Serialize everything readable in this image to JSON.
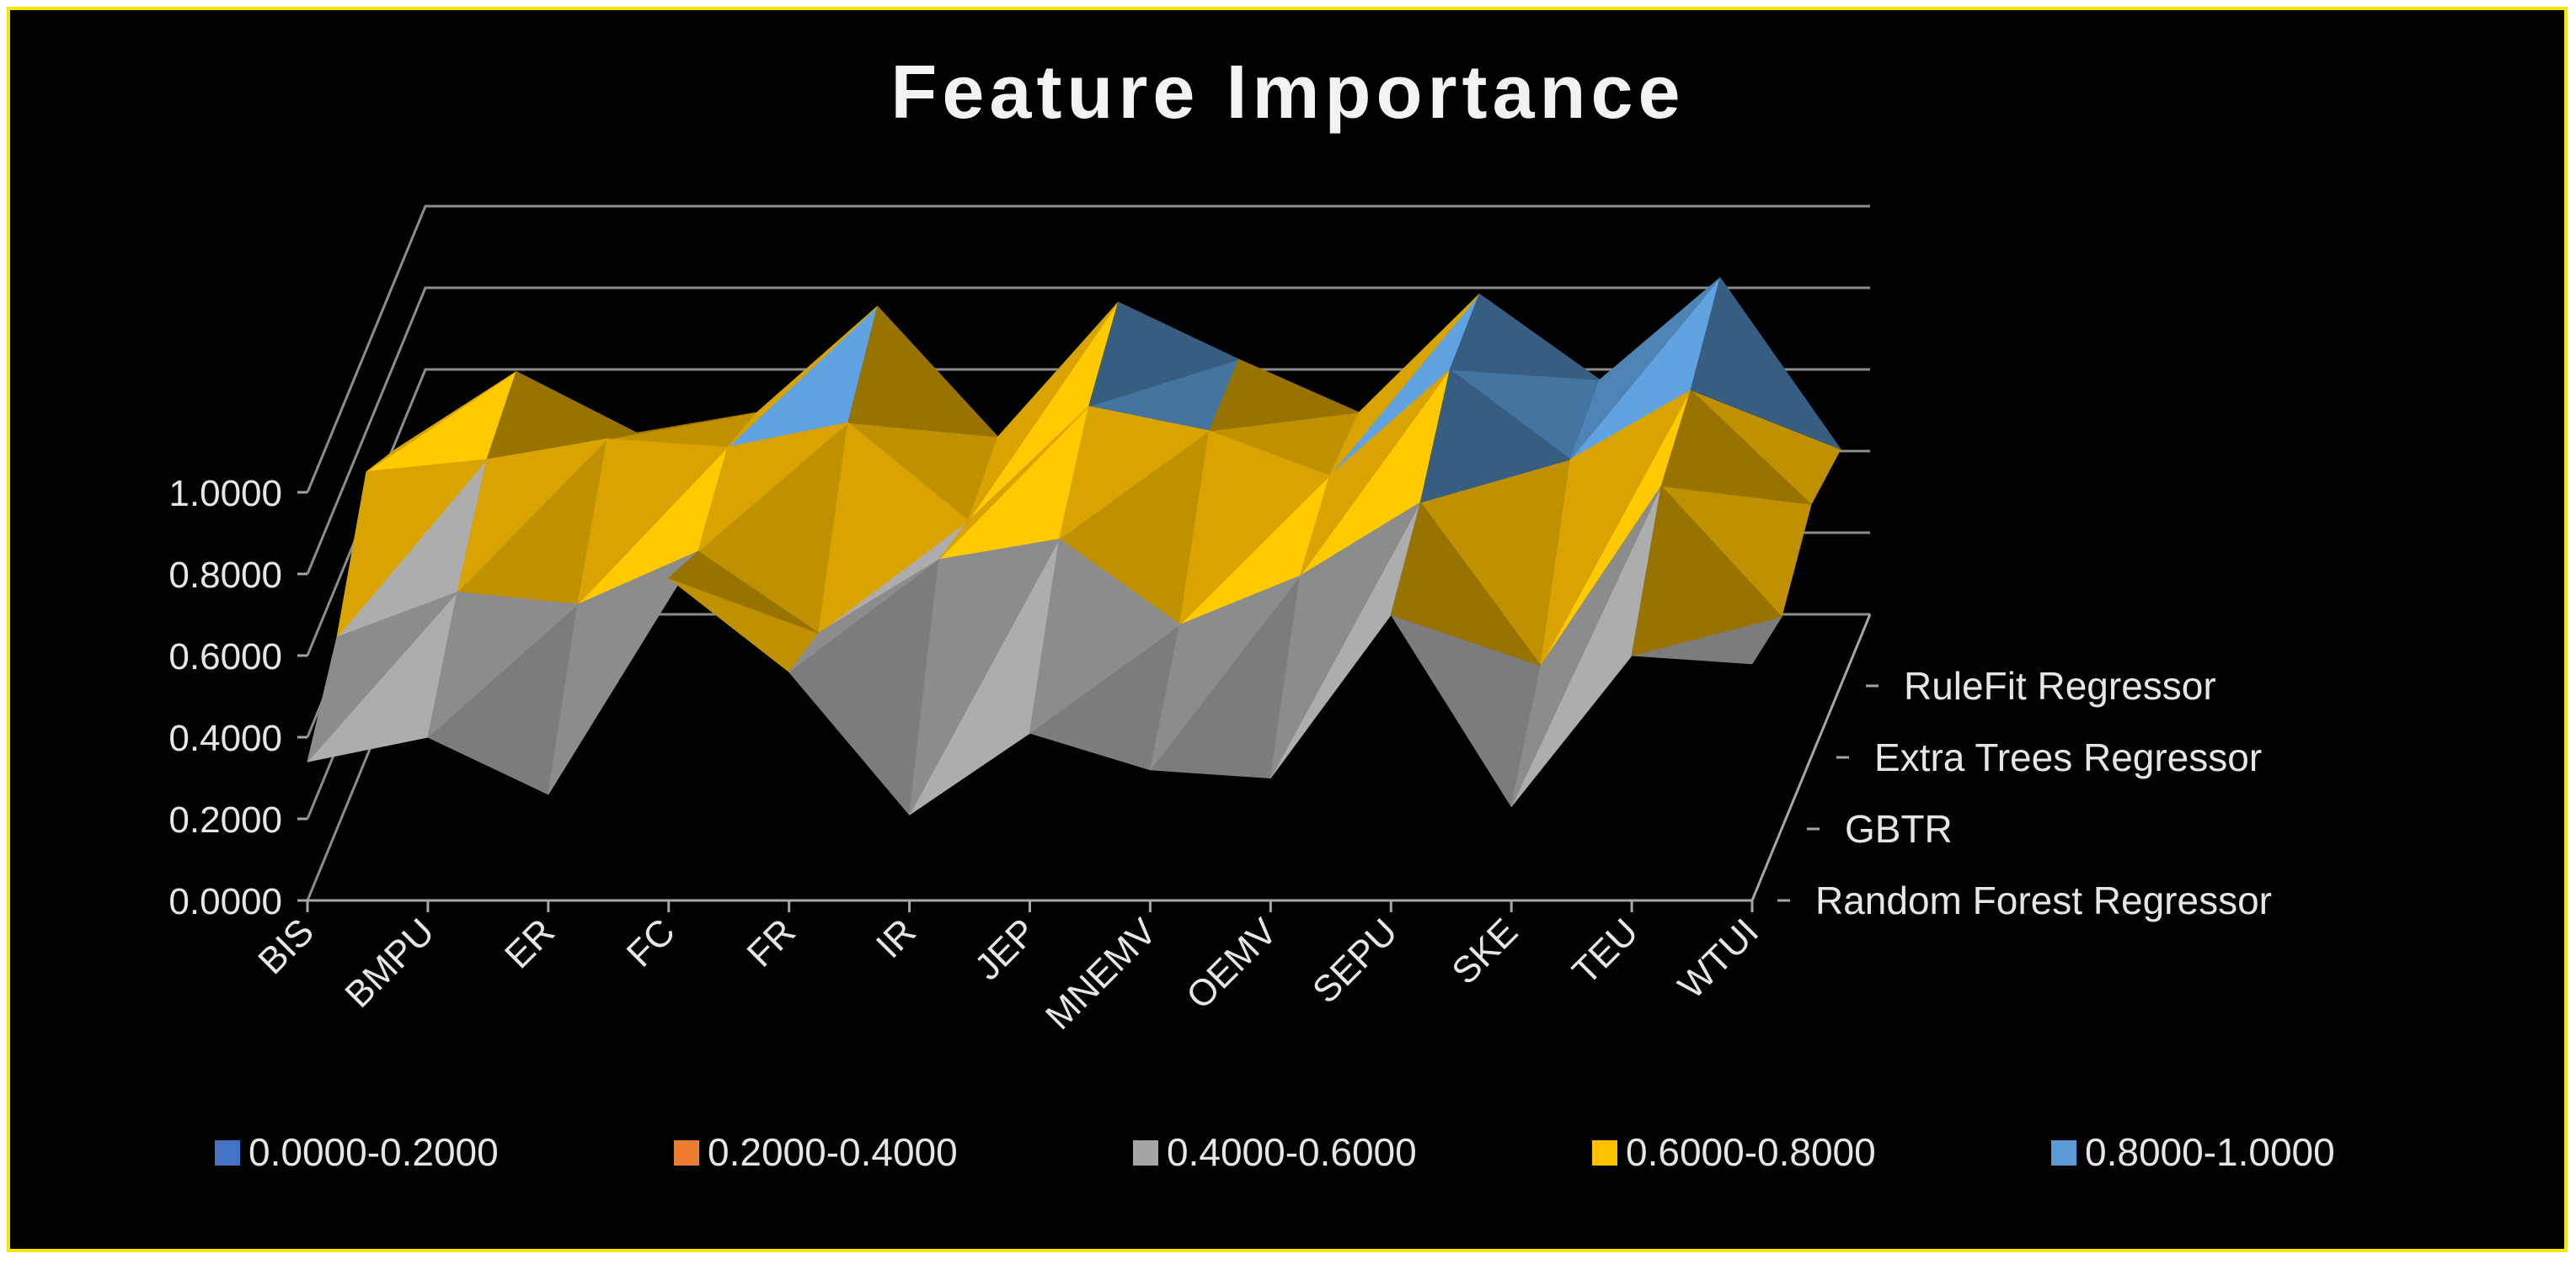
{
  "chart_data": {
    "type": "surface",
    "title": "Feature Importance",
    "categories": [
      "BIS",
      "BMPU",
      "ER",
      "FC",
      "FR",
      "IR",
      "JEP",
      "MNEMV",
      "OEMV",
      "SEPU",
      "SKE",
      "TEU",
      "WTUI"
    ],
    "series": [
      {
        "name": "Random Forest Regressor",
        "values": [
          0.34,
          0.4,
          0.26,
          0.79,
          0.56,
          0.21,
          0.41,
          0.32,
          0.3,
          0.7,
          0.23,
          0.6,
          0.58
        ]
      },
      {
        "name": "GBTR",
        "values": [
          0.47,
          0.58,
          0.55,
          0.68,
          0.48,
          0.66,
          0.71,
          0.5,
          0.62,
          0.8,
          0.4,
          0.84,
          0.52
        ]
      },
      {
        "name": "Extra Trees Regressor",
        "values": [
          0.7,
          0.73,
          0.78,
          0.76,
          0.82,
          0.58,
          0.86,
          0.8,
          0.69,
          0.95,
          0.73,
          0.9,
          0.62
        ]
      },
      {
        "name": "RuleFit Regressor",
        "values": [
          0.58,
          0.77,
          0.62,
          0.67,
          0.93,
          0.61,
          0.94,
          0.8,
          0.67,
          0.96,
          0.75,
          1.0,
          0.58
        ]
      }
    ],
    "z_axis": {
      "ticks": [
        "0.0000",
        "0.2000",
        "0.4000",
        "0.6000",
        "0.8000",
        "1.0000"
      ],
      "zlim": [
        0,
        1
      ]
    },
    "legend": {
      "position": "bottom",
      "items": [
        {
          "label": "0.0000-0.2000",
          "color": "#4472c4"
        },
        {
          "label": "0.2000-0.4000",
          "color": "#ed7d31"
        },
        {
          "label": "0.4000-0.6000",
          "color": "#a5a5a5"
        },
        {
          "label": "0.6000-0.8000",
          "color": "#ffc000"
        },
        {
          "label": "0.8000-1.0000",
          "color": "#5b9bd5"
        }
      ]
    },
    "grid": true,
    "background": "#000000",
    "border_color": "#f3e600"
  }
}
